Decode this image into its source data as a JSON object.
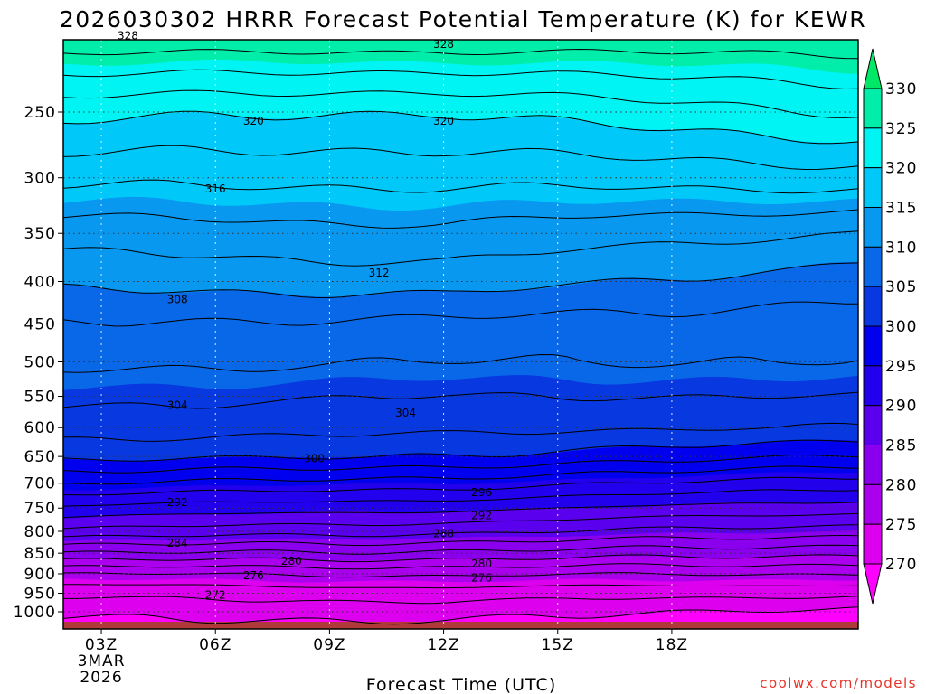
{
  "chart_data": {
    "type": "contour",
    "title": "2026030302 HRRR Forecast Potential Temperature (K) for KEWR",
    "xlabel": "Forecast Time (UTC)",
    "credit": "coolwx.com/models",
    "x_hours": [
      0,
      1,
      2,
      3,
      4,
      5,
      6,
      7,
      8,
      9,
      10,
      11,
      12,
      13,
      14,
      15,
      16,
      17,
      18,
      19,
      20
    ],
    "x_ticks": [
      {
        "hour": 1,
        "label": "03Z",
        "date_line1": "3MAR",
        "date_line2": "2026"
      },
      {
        "hour": 4,
        "label": "06Z"
      },
      {
        "hour": 7,
        "label": "09Z"
      },
      {
        "hour": 10,
        "label": "12Z"
      },
      {
        "hour": 13,
        "label": "15Z"
      },
      {
        "hour": 16,
        "label": "18Z"
      }
    ],
    "y_scale": "log-pressure",
    "y_range_hPa": [
      1050,
      200
    ],
    "y_ticks": [
      250,
      300,
      350,
      400,
      450,
      500,
      550,
      600,
      650,
      700,
      750,
      800,
      850,
      900,
      950,
      1000
    ],
    "colorbar": {
      "levels": [
        270,
        275,
        280,
        285,
        290,
        295,
        300,
        305,
        310,
        315,
        320,
        325,
        330
      ],
      "colors": [
        "#ff00ff",
        "#dd00ee",
        "#aa00ee",
        "#8a00ee",
        "#5a00ee",
        "#2200ee",
        "#0000ee",
        "#0838e0",
        "#0868e8",
        "#0898f0",
        "#00c8f8",
        "#00f4f4",
        "#00eeaa",
        "#00e866"
      ]
    },
    "contour_interval_K": 2,
    "profiles": [
      {
        "p": [
          1000,
          950,
          900,
          850,
          800,
          750,
          700,
          650,
          600,
          550,
          500,
          450,
          400,
          350,
          300,
          250,
          200
        ],
        "hours": [
          0,
          2,
          4,
          6,
          8,
          10,
          12,
          14,
          16,
          18,
          20
        ]
      }
    ],
    "theta_at_hour0": [
      270.5,
      272.5,
      276.0,
      282.0,
      287.5,
      291.5,
      296.0,
      300.5,
      303.0,
      304.5,
      306.5,
      308.0,
      310.5,
      313.0,
      316.5,
      320.5,
      328.0
    ],
    "theta_at_hour10": [
      270.8,
      273.0,
      276.3,
      281.5,
      286.5,
      290.5,
      295.0,
      300.0,
      302.5,
      304.0,
      306.0,
      307.5,
      311.0,
      313.5,
      316.5,
      320.0,
      328.0
    ],
    "theta_at_hour20": [
      269.5,
      272.5,
      276.0,
      280.5,
      285.0,
      289.0,
      293.0,
      298.0,
      302.0,
      304.0,
      306.0,
      307.0,
      309.0,
      312.0,
      317.0,
      322.0,
      327.5
    ],
    "contour_labels": [
      {
        "value": "328",
        "hour": 1.7,
        "p": 202
      },
      {
        "value": "328",
        "hour": 10.0,
        "p": 207
      },
      {
        "value": "320",
        "hour": 5.0,
        "p": 256
      },
      {
        "value": "320",
        "hour": 10.0,
        "p": 256
      },
      {
        "value": "316",
        "hour": 4.0,
        "p": 309
      },
      {
        "value": "312",
        "hour": 8.3,
        "p": 390
      },
      {
        "value": "308",
        "hour": 3.0,
        "p": 420
      },
      {
        "value": "304",
        "hour": 3.0,
        "p": 563
      },
      {
        "value": "304",
        "hour": 9.0,
        "p": 575
      },
      {
        "value": "300",
        "hour": 6.6,
        "p": 653
      },
      {
        "value": "296",
        "hour": 11.0,
        "p": 717
      },
      {
        "value": "292",
        "hour": 3.0,
        "p": 737
      },
      {
        "value": "292",
        "hour": 11.0,
        "p": 765
      },
      {
        "value": "288",
        "hour": 10.0,
        "p": 804
      },
      {
        "value": "284",
        "hour": 3.0,
        "p": 825
      },
      {
        "value": "280",
        "hour": 6.0,
        "p": 868
      },
      {
        "value": "280",
        "hour": 11.0,
        "p": 875
      },
      {
        "value": "276",
        "hour": 5.0,
        "p": 903
      },
      {
        "value": "276",
        "hour": 11.0,
        "p": 909
      },
      {
        "value": "272",
        "hour": 4.0,
        "p": 953
      }
    ]
  }
}
